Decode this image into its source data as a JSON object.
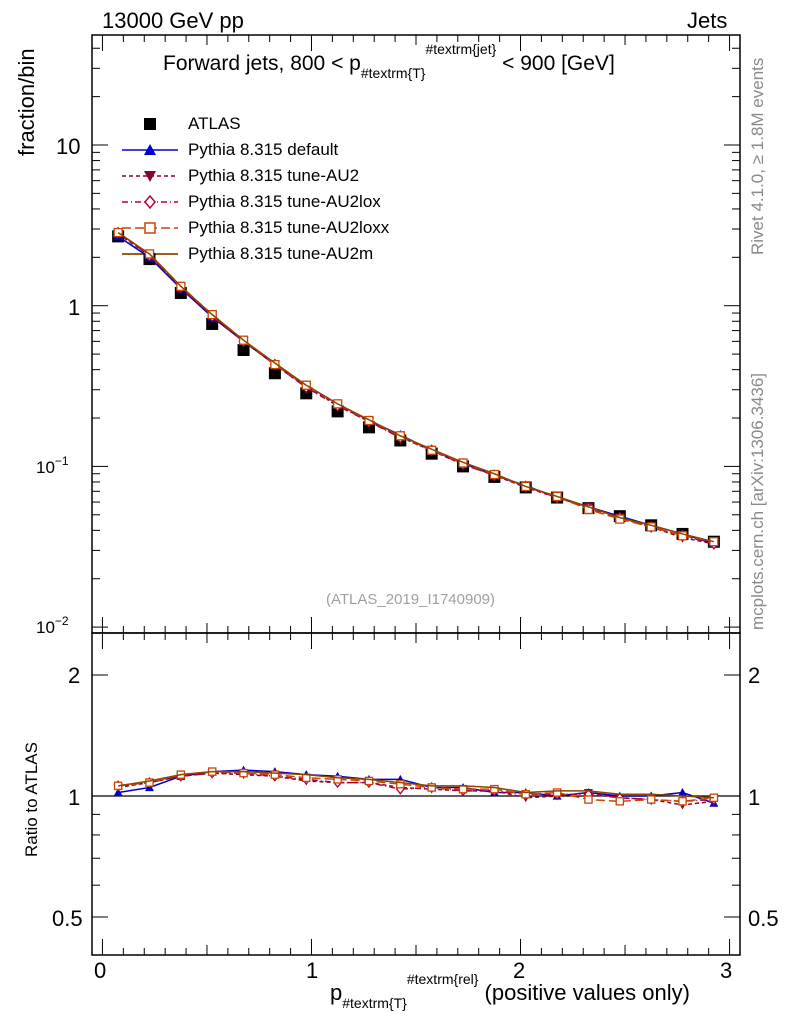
{
  "header": {
    "left": "13000 GeV pp",
    "right": "Jets"
  },
  "side_texts": {
    "rivet": "Rivet 4.1.0, ≥ 1.8M events",
    "mcplots": "mcplots.cern.ch [arXiv:1306.3436]"
  },
  "plot_title": {
    "pre": "Forward jets, 800 < p",
    "sub": "#textrm{T}",
    "sup": "#textrm{jet}",
    "post": " < 900 [GeV]"
  },
  "watermark": "(ATLAS_2019_I1740909)",
  "ylabel_top": "fraction/bin",
  "ylabel_bottom": "Ratio to ATLAS",
  "xlabel": {
    "pre": "p",
    "sub": "#textrm{T}",
    "sup": "#textrm{rel}",
    "post": " (positive values only)"
  },
  "tick_labels": {
    "x": [
      "0",
      "1",
      "2",
      "3"
    ],
    "y_top": [
      {
        "mant": "10",
        "exp": "−2"
      },
      {
        "mant": "10",
        "exp": "−1"
      },
      {
        "mant": "1",
        "exp": ""
      },
      {
        "mant": "10",
        "exp": ""
      }
    ],
    "y_bottom_left": [
      "0.5",
      "1",
      "2"
    ],
    "y_bottom_right": [
      "0.5",
      "1",
      "2"
    ]
  },
  "legend": [
    {
      "label": "ATLAS",
      "color": "#000000",
      "marker": "square-filled",
      "line": "none"
    },
    {
      "label": "Pythia 8.315 default",
      "color": "#0000cc",
      "marker": "triangle-up",
      "line": "solid"
    },
    {
      "label": "Pythia 8.315 tune-AU2",
      "color": "#8b0033",
      "marker": "triangle-down",
      "line": "dashed"
    },
    {
      "label": "Pythia 8.315 tune-AU2lox",
      "color": "#b0003a",
      "marker": "diamond-open",
      "line": "dashdot"
    },
    {
      "label": "Pythia 8.315 tune-AU2loxx",
      "color": "#cc4400",
      "marker": "square-open",
      "line": "longdash"
    },
    {
      "label": "Pythia 8.315 tune-AU2m",
      "color": "#8b4500",
      "marker": "none",
      "line": "solid"
    }
  ],
  "chart_data": [
    {
      "type": "scatter",
      "title": "Forward jets, 800 < pT^jet < 900 [GeV]",
      "xlabel": "pT^rel (positive values only)",
      "ylabel": "fraction/bin",
      "yscale": "log",
      "xlim": [
        -0.05,
        3.05
      ],
      "ylim": [
        0.008,
        50
      ],
      "x": [
        0.075,
        0.225,
        0.375,
        0.525,
        0.675,
        0.825,
        0.975,
        1.125,
        1.275,
        1.425,
        1.575,
        1.725,
        1.875,
        2.025,
        2.175,
        2.325,
        2.475,
        2.625,
        2.775,
        2.925
      ],
      "series": [
        {
          "name": "ATLAS",
          "values": [
            2.7,
            1.95,
            1.2,
            0.77,
            0.53,
            0.38,
            0.285,
            0.22,
            0.175,
            0.145,
            0.12,
            0.1,
            0.086,
            0.074,
            0.064,
            0.055,
            0.049,
            0.043,
            0.038,
            0.034
          ]
        },
        {
          "name": "Pythia 8.315 default",
          "values": [
            2.7,
            2.0,
            1.28,
            0.85,
            0.6,
            0.43,
            0.32,
            0.245,
            0.193,
            0.157,
            0.126,
            0.105,
            0.088,
            0.076,
            0.064,
            0.056,
            0.049,
            0.043,
            0.038,
            0.033
          ]
        },
        {
          "name": "Pythia 8.315 tune-AU2",
          "values": [
            2.8,
            2.05,
            1.3,
            0.87,
            0.6,
            0.43,
            0.31,
            0.242,
            0.19,
            0.153,
            0.125,
            0.103,
            0.088,
            0.074,
            0.064,
            0.056,
            0.048,
            0.042,
            0.036,
            0.033
          ]
        },
        {
          "name": "Pythia 8.315 tune-AU2lox",
          "values": [
            2.85,
            2.05,
            1.3,
            0.86,
            0.6,
            0.43,
            0.31,
            0.238,
            0.19,
            0.151,
            0.126,
            0.103,
            0.088,
            0.075,
            0.064,
            0.055,
            0.048,
            0.042,
            0.037,
            0.033
          ]
        },
        {
          "name": "Pythia 8.315 tune-AU2loxx",
          "values": [
            2.85,
            2.1,
            1.32,
            0.88,
            0.61,
            0.43,
            0.32,
            0.245,
            0.193,
            0.155,
            0.126,
            0.105,
            0.089,
            0.075,
            0.065,
            0.054,
            0.047,
            0.042,
            0.037,
            0.034
          ]
        },
        {
          "name": "Pythia 8.315 tune-AU2m",
          "values": [
            2.85,
            2.1,
            1.32,
            0.88,
            0.61,
            0.44,
            0.32,
            0.245,
            0.195,
            0.155,
            0.128,
            0.106,
            0.09,
            0.075,
            0.065,
            0.056,
            0.048,
            0.043,
            0.038,
            0.034
          ]
        }
      ]
    },
    {
      "type": "line",
      "title": "Ratio to ATLAS",
      "xlabel": "pT^rel (positive values only)",
      "ylabel": "Ratio to ATLAS",
      "yscale": "log",
      "xlim": [
        -0.05,
        3.05
      ],
      "ylim": [
        0.4,
        2.5
      ],
      "reference_line": 1,
      "x": [
        0.075,
        0.225,
        0.375,
        0.525,
        0.675,
        0.825,
        0.975,
        1.125,
        1.275,
        1.425,
        1.575,
        1.725,
        1.875,
        2.025,
        2.175,
        2.325,
        2.475,
        2.625,
        2.775,
        2.925
      ],
      "series": [
        {
          "name": "Pythia 8.315 default",
          "values": [
            1.02,
            1.05,
            1.12,
            1.15,
            1.16,
            1.15,
            1.13,
            1.12,
            1.1,
            1.1,
            1.05,
            1.05,
            1.02,
            1.02,
            1.0,
            1.02,
            1.0,
            1.0,
            1.02,
            0.96
          ]
        },
        {
          "name": "Pythia 8.315 tune-AU2",
          "values": [
            1.05,
            1.08,
            1.12,
            1.14,
            1.13,
            1.12,
            1.09,
            1.08,
            1.08,
            1.05,
            1.04,
            1.03,
            1.03,
            0.99,
            1.0,
            1.02,
            0.99,
            0.98,
            0.95,
            0.97
          ]
        },
        {
          "name": "Pythia 8.315 tune-AU2lox",
          "values": [
            1.06,
            1.08,
            1.12,
            1.14,
            1.14,
            1.12,
            1.1,
            1.08,
            1.08,
            1.04,
            1.05,
            1.03,
            1.03,
            1.01,
            1.01,
            1.01,
            0.99,
            0.98,
            0.97,
            0.98
          ]
        },
        {
          "name": "Pythia 8.315 tune-AU2loxx",
          "values": [
            1.06,
            1.08,
            1.13,
            1.15,
            1.14,
            1.13,
            1.11,
            1.1,
            1.09,
            1.07,
            1.05,
            1.04,
            1.04,
            1.01,
            1.02,
            0.98,
            0.97,
            0.98,
            0.97,
            0.99
          ]
        },
        {
          "name": "Pythia 8.315 tune-AU2m",
          "values": [
            1.06,
            1.09,
            1.13,
            1.15,
            1.15,
            1.14,
            1.13,
            1.11,
            1.1,
            1.08,
            1.06,
            1.06,
            1.05,
            1.02,
            1.03,
            1.03,
            1.01,
            1.01,
            1.0,
            0.99
          ]
        }
      ]
    }
  ]
}
